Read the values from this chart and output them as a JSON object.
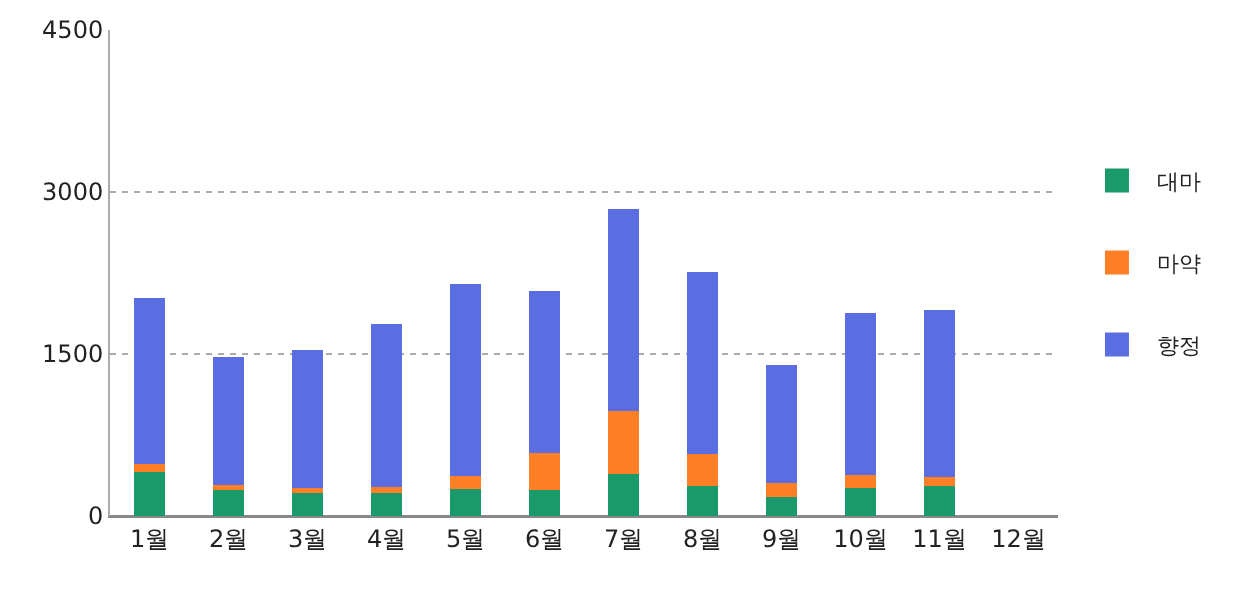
{
  "chart_data": {
    "type": "bar",
    "stacked": true,
    "categories": [
      "1월",
      "2월",
      "3월",
      "4월",
      "5월",
      "6월",
      "7월",
      "8월",
      "9월",
      "10월",
      "11월",
      "12월"
    ],
    "series": [
      {
        "name": "대마",
        "color": "#1a9a6a",
        "values": [
          410,
          240,
          210,
          210,
          250,
          240,
          390,
          280,
          180,
          260,
          280,
          null
        ]
      },
      {
        "name": "마약",
        "color": "#ff7f27",
        "values": [
          70,
          50,
          50,
          60,
          120,
          340,
          580,
          290,
          130,
          120,
          80,
          null
        ]
      },
      {
        "name": "향정",
        "color": "#5b6ee1",
        "values": [
          1540,
          1180,
          1280,
          1510,
          1780,
          1500,
          1870,
          1690,
          1090,
          1500,
          1550,
          null
        ]
      }
    ],
    "ylim": [
      0,
      4500
    ],
    "yticks": [
      0,
      1500,
      3000,
      4500
    ],
    "grid": "y",
    "legend": "right"
  }
}
